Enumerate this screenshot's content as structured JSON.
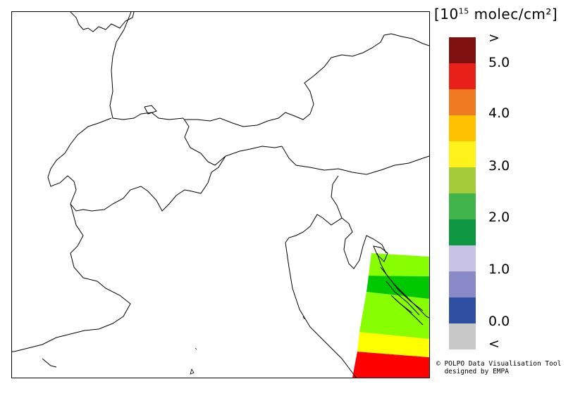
{
  "legend": {
    "unit_prefix": "[10",
    "unit_exponent": "15",
    "unit_suffix": " molec/cm²]",
    "bins": [
      {
        "color": "#7f1010"
      },
      {
        "color": "#e8201a"
      },
      {
        "color": "#f07a22"
      },
      {
        "color": "#ffc200"
      },
      {
        "color": "#fff21a"
      },
      {
        "color": "#a6cb3a"
      },
      {
        "color": "#40b44a"
      },
      {
        "color": "#0e9640"
      },
      {
        "color": "#c7c2e4"
      },
      {
        "color": "#8a8ac8"
      },
      {
        "color": "#2f4fa3"
      },
      {
        "color": "#c8c8c8"
      }
    ],
    "labels": [
      ">",
      "5.0",
      "4.0",
      "3.0",
      "2.0",
      "1.0",
      "0.0",
      "<"
    ]
  },
  "credits": {
    "line1": "© POLPO Data Visualisation Tool",
    "line2": "  designed by EMPA"
  }
}
